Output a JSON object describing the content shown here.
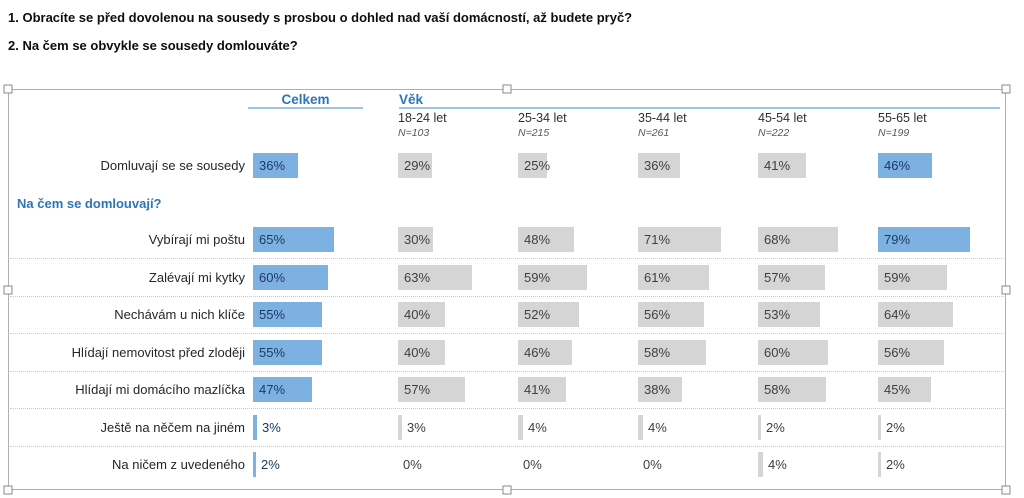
{
  "questions": [
    "1. Obracíte se před dovolenou na sousedy s prosbou o dohled nad vaší domácností, až budete pryč?",
    "2. Na čem se obvykle se sousedy domlouváte?"
  ],
  "chart_data": {
    "type": "bar",
    "orientation": "horizontal",
    "unit": "%",
    "total_column": "Celkem",
    "group_header": "Věk",
    "age_columns": [
      {
        "label": "18-24 let",
        "n": "N=103"
      },
      {
        "label": "25-34 let",
        "n": "N=215"
      },
      {
        "label": "35-44 let",
        "n": "N=261"
      },
      {
        "label": "45-54 let",
        "n": "N=222"
      },
      {
        "label": "55-65 let",
        "n": "N=199"
      }
    ],
    "section_label": "Na čem se domlouvají?",
    "columns": [
      "Celkem",
      "18-24 let",
      "25-34 let",
      "35-44 let",
      "45-54 let",
      "55-65 let"
    ],
    "rows": [
      {
        "label": "Domluvají se se sousedy",
        "values": [
          36,
          29,
          25,
          36,
          41,
          46
        ],
        "highlights": [
          true,
          false,
          false,
          false,
          false,
          true
        ]
      },
      {
        "label": "Vybírají mi poštu",
        "values": [
          65,
          30,
          48,
          71,
          68,
          79
        ],
        "highlights": [
          true,
          false,
          false,
          false,
          false,
          true
        ]
      },
      {
        "label": "Zalévají mi kytky",
        "values": [
          60,
          63,
          59,
          61,
          57,
          59
        ],
        "highlights": [
          true,
          false,
          false,
          false,
          false,
          false
        ]
      },
      {
        "label": "Nechávám u nich klíče",
        "values": [
          55,
          40,
          52,
          56,
          53,
          64
        ],
        "highlights": [
          true,
          false,
          false,
          false,
          false,
          false
        ]
      },
      {
        "label": "Hlídají nemovitost před zloději",
        "values": [
          55,
          40,
          46,
          58,
          60,
          56
        ],
        "highlights": [
          true,
          false,
          false,
          false,
          false,
          false
        ]
      },
      {
        "label": "Hlídají mi domácího mazlíčka",
        "values": [
          47,
          57,
          41,
          38,
          58,
          45
        ],
        "highlights": [
          true,
          false,
          false,
          false,
          false,
          false
        ]
      },
      {
        "label": "Ještě na něčem na jiném",
        "values": [
          3,
          3,
          4,
          4,
          2,
          2
        ],
        "highlights": [
          true,
          false,
          false,
          false,
          false,
          false
        ]
      },
      {
        "label": "Na ničem z uvedeného",
        "values": [
          2,
          0,
          0,
          0,
          4,
          2
        ],
        "highlights": [
          true,
          false,
          false,
          false,
          false,
          false
        ]
      }
    ]
  },
  "colors": {
    "highlight_bar": "#7CB1E2",
    "default_bar": "#D5D5D5",
    "highlight_text": "#1F3A60",
    "default_text": "#3F3F3F",
    "header_blue": "#2E75B6",
    "underline_blue": "#9DC3E6"
  }
}
